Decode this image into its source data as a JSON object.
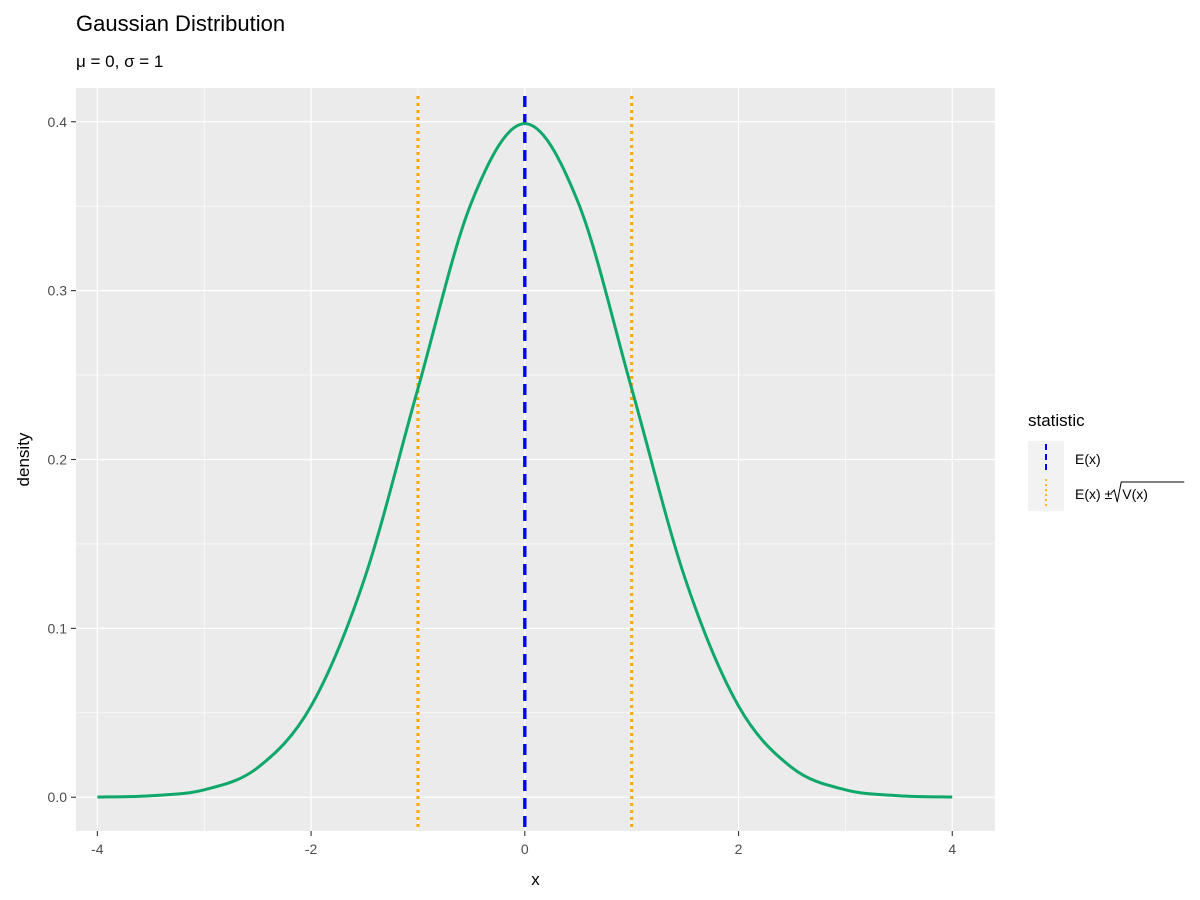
{
  "chart_data": {
    "type": "line",
    "title": "Gaussian Distribution",
    "subtitle": "μ = 0, σ = 1",
    "xlabel": "x",
    "ylabel": "density",
    "xlim": [
      -4.2,
      4.4
    ],
    "ylim": [
      -0.02,
      0.42
    ],
    "x_ticks": [
      -4,
      -2,
      0,
      2,
      4
    ],
    "x_tick_labels": [
      "-4",
      "-2",
      "0",
      "2",
      "4"
    ],
    "y_ticks": [
      0.0,
      0.1,
      0.2,
      0.3,
      0.4
    ],
    "y_tick_labels": [
      "0.0",
      "0.1",
      "0.2",
      "0.3",
      "0.4"
    ],
    "grid": true,
    "series": [
      {
        "x": [
          -4,
          -3.5,
          -3,
          -2.5,
          -2,
          -1.5,
          -1,
          -0.5,
          0,
          0.5,
          1,
          1.5,
          2,
          2.5,
          3,
          3.5,
          4
        ],
        "y": [
          0.0001,
          0.0009,
          0.0044,
          0.0175,
          0.054,
          0.1295,
          0.242,
          0.3521,
          0.3989,
          0.3521,
          0.242,
          0.1295,
          0.054,
          0.0175,
          0.0044,
          0.0009,
          0.0001
        ],
        "color": "#0fa86a"
      }
    ],
    "vlines": [
      {
        "x": 0,
        "color": "#0000ff",
        "style": "dashed",
        "legend": "E(x)"
      },
      {
        "x": -1,
        "color": "#ffa500",
        "style": "dotted",
        "legend": "E(x) ± √V(x)"
      },
      {
        "x": 1,
        "color": "#ffa500",
        "style": "dotted",
        "legend": "E(x) ± √V(x)"
      }
    ],
    "legend": {
      "title": "statistic",
      "placement": "right",
      "entries": [
        {
          "label_prefix": "E(x)",
          "label_rest": "",
          "color": "#0000ff",
          "style": "dashed"
        },
        {
          "label_prefix": "E(x) ± ",
          "label_rest": "V(x)",
          "color": "#ffa500",
          "style": "dotted"
        }
      ]
    }
  }
}
